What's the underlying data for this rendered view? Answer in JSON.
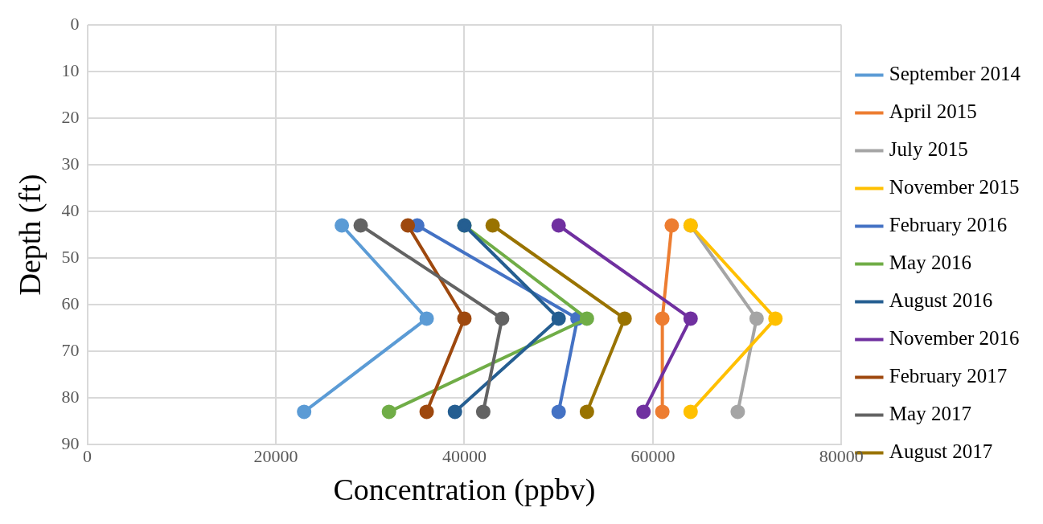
{
  "chart_data": {
    "type": "line",
    "xlabel": "Concentration (ppbv)",
    "ylabel": "Depth (ft)",
    "xlim": [
      0,
      80000
    ],
    "xticks": [
      0,
      20000,
      40000,
      60000,
      80000
    ],
    "ylim": [
      90,
      0
    ],
    "yticks": [
      0,
      10,
      20,
      30,
      40,
      50,
      60,
      70,
      80,
      90
    ],
    "grid": true,
    "legend": "right",
    "marker": "circle",
    "line_style": "solid",
    "series": [
      {
        "name": "September 2014",
        "color": "#5b9bd5",
        "x": [
          27000,
          36000,
          23000
        ],
        "values": [
          43,
          63,
          83
        ]
      },
      {
        "name": "April 2015",
        "color": "#ed7d31",
        "x": [
          62000,
          61000,
          61000
        ],
        "values": [
          43,
          63,
          83
        ]
      },
      {
        "name": "July 2015",
        "color": "#a5a5a5",
        "x": [
          64000,
          71000,
          69000
        ],
        "values": [
          43,
          63,
          83
        ]
      },
      {
        "name": "November 2015",
        "color": "#ffc000",
        "x": [
          64000,
          73000,
          64000
        ],
        "values": [
          43,
          63,
          83
        ]
      },
      {
        "name": "February 2016",
        "color": "#4472c4",
        "x": [
          35000,
          52000,
          50000
        ],
        "values": [
          43,
          63,
          83
        ]
      },
      {
        "name": "May 2016",
        "color": "#70ad47",
        "x": [
          40000,
          53000,
          32000
        ],
        "values": [
          43,
          63,
          83
        ]
      },
      {
        "name": "August 2016",
        "color": "#255e91",
        "x": [
          40000,
          50000,
          39000
        ],
        "values": [
          43,
          63,
          83
        ]
      },
      {
        "name": "November 2016",
        "color": "#7030a0",
        "x": [
          50000,
          64000,
          59000
        ],
        "values": [
          43,
          63,
          83
        ]
      },
      {
        "name": "February 2017",
        "color": "#9e480e",
        "x": [
          34000,
          40000,
          36000
        ],
        "values": [
          43,
          63,
          83
        ]
      },
      {
        "name": "May 2017",
        "color": "#636363",
        "x": [
          29000,
          44000,
          42000
        ],
        "values": [
          43,
          63,
          83
        ]
      },
      {
        "name": "August 2017",
        "color": "#997300",
        "x": [
          43000,
          57000,
          53000
        ],
        "values": [
          43,
          63,
          83
        ]
      }
    ]
  }
}
